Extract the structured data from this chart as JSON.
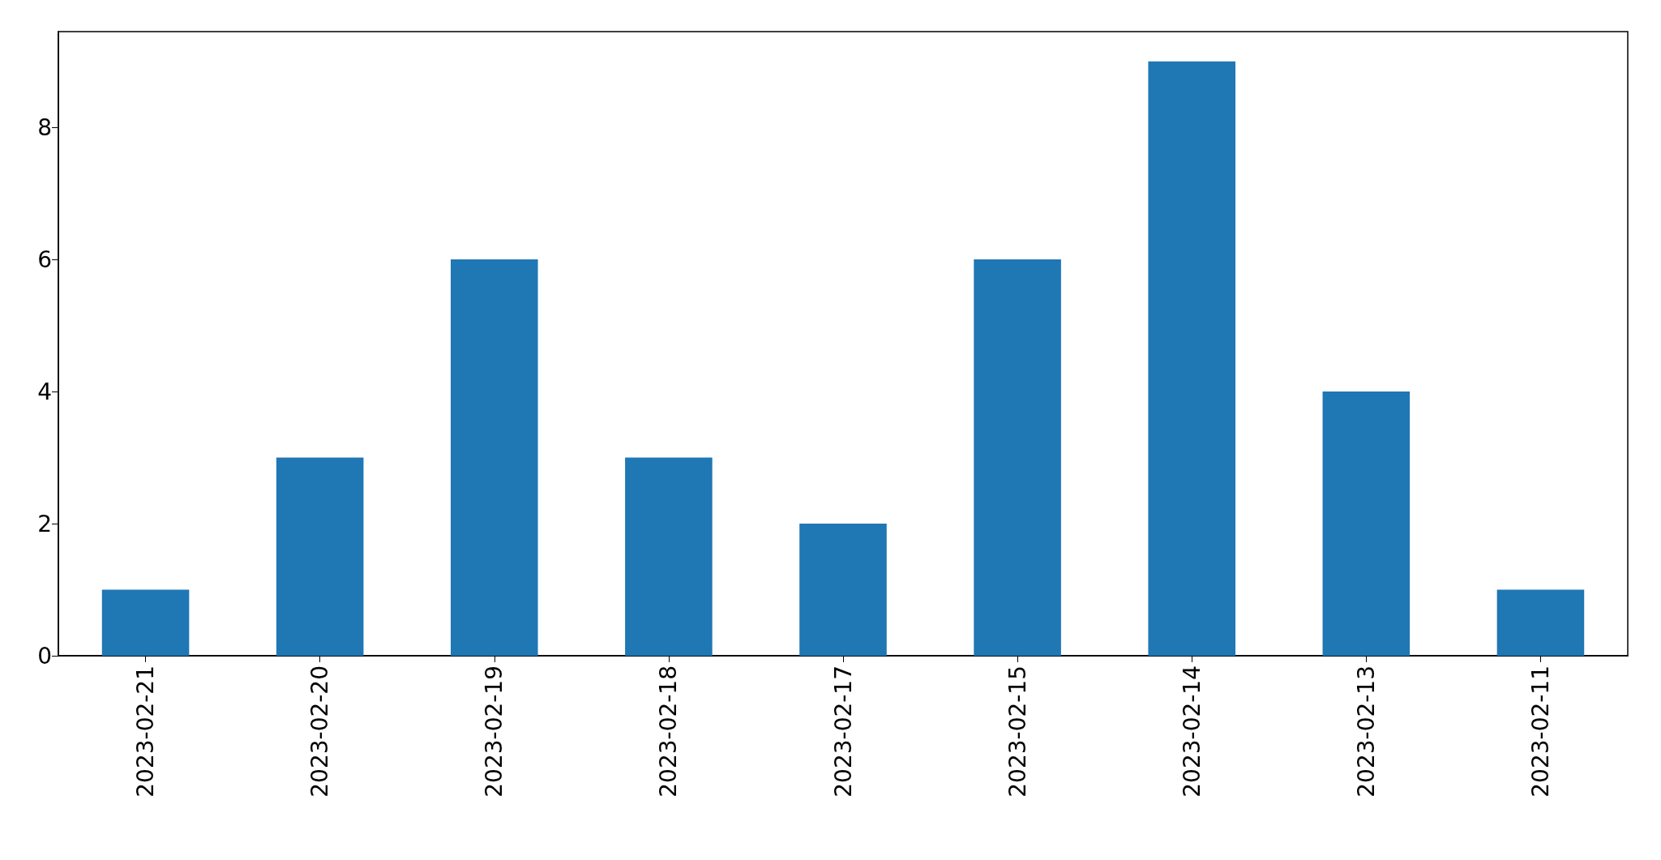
{
  "chart_data": {
    "type": "bar",
    "categories": [
      "2023-02-21",
      "2023-02-20",
      "2023-02-19",
      "2023-02-18",
      "2023-02-17",
      "2023-02-15",
      "2023-02-14",
      "2023-02-13",
      "2023-02-11"
    ],
    "values": [
      1,
      3,
      6,
      3,
      2,
      6,
      9,
      4,
      1
    ],
    "color": "#1f77b4",
    "ylim": [
      0,
      9.45
    ],
    "yticks": [
      0,
      2,
      4,
      6,
      8
    ]
  }
}
